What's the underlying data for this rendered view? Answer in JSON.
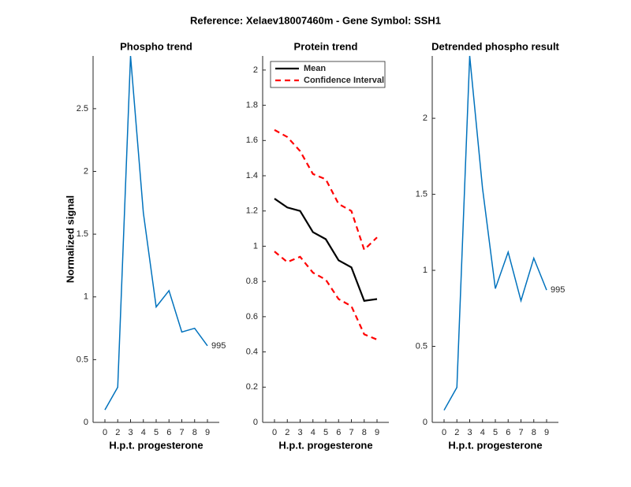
{
  "title": "Reference:  Xelaev18007460m - Gene Symbol:  SSH1",
  "chart_data": [
    {
      "type": "line",
      "title": "Phospho trend",
      "xlabel": "H.p.t. progesterone",
      "ylabel": "Normalized signal",
      "categories": [
        "0",
        "2",
        "3",
        "4",
        "5",
        "6",
        "7",
        "8",
        "9"
      ],
      "series": [
        {
          "name": "995",
          "color": "#0072bd",
          "values": [
            0.1,
            0.28,
            2.92,
            1.67,
            0.92,
            1.05,
            0.72,
            0.75,
            0.61
          ]
        }
      ],
      "annotation": "995",
      "ylim": [
        0,
        2.92
      ],
      "yticks": [
        0,
        0.5,
        1,
        1.5,
        2,
        2.5
      ]
    },
    {
      "type": "band",
      "title": "Protein trend",
      "xlabel": "H.p.t. progesterone",
      "categories": [
        "0",
        "2",
        "3",
        "4",
        "5",
        "6",
        "7",
        "8",
        "9"
      ],
      "series": [
        {
          "name": "Mean",
          "color": "#000000",
          "values": [
            1.27,
            1.22,
            1.2,
            1.08,
            1.04,
            0.92,
            0.88,
            0.69,
            0.7
          ]
        },
        {
          "name": "Confidence Interval",
          "color": "#ff0000",
          "dashed": true,
          "values": [
            1.66,
            1.62,
            1.54,
            1.41,
            1.38,
            1.24,
            1.2,
            0.98,
            1.05
          ],
          "lower": [
            0.97,
            0.91,
            0.94,
            0.85,
            0.81,
            0.7,
            0.66,
            0.5,
            0.47
          ]
        }
      ],
      "legend": "upper-left",
      "ylim": [
        0,
        2.08
      ],
      "yticks": [
        0,
        0.2,
        0.4,
        0.6,
        0.8,
        1,
        1.2,
        1.4,
        1.6,
        1.8,
        2
      ]
    },
    {
      "type": "line",
      "title": "Detrended phospho result",
      "xlabel": "H.p.t. progesterone",
      "categories": [
        "0",
        "2",
        "3",
        "4",
        "5",
        "6",
        "7",
        "8",
        "9"
      ],
      "series": [
        {
          "name": "995",
          "color": "#0072bd",
          "values": [
            0.08,
            0.23,
            2.41,
            1.54,
            0.88,
            1.12,
            0.8,
            1.08,
            0.87
          ]
        }
      ],
      "annotation": "995",
      "ylim": [
        0,
        2.41
      ],
      "yticks": [
        0,
        0.5,
        1,
        1.5,
        2
      ]
    }
  ]
}
